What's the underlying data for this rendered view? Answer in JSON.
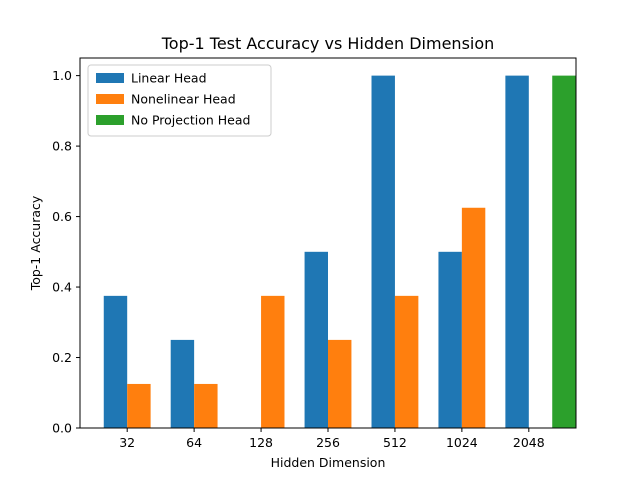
{
  "chart_data": {
    "type": "bar",
    "title": "Top-1 Test Accuracy vs Hidden Dimension",
    "xlabel": "Hidden Dimension",
    "ylabel": "Top-1 Accuracy",
    "categories": [
      "32",
      "64",
      "128",
      "256",
      "512",
      "1024",
      "2048"
    ],
    "ylim": [
      0,
      1.05
    ],
    "yticks": [
      "0.0",
      "0.2",
      "0.4",
      "0.6",
      "0.8",
      "1.0"
    ],
    "grid": false,
    "legend_position": "top-left",
    "series": [
      {
        "name": "Linear Head",
        "color": "#1f77b4",
        "values": [
          0.375,
          0.25,
          null,
          0.5,
          1.0,
          0.5,
          1.0
        ]
      },
      {
        "name": "Nonelinear Head",
        "color": "#ff7f0e",
        "values": [
          0.125,
          0.125,
          0.375,
          0.25,
          0.375,
          0.625,
          null
        ]
      },
      {
        "name": "No Projection Head",
        "color": "#2ca02c",
        "values": [
          null,
          null,
          null,
          null,
          null,
          null,
          1.0
        ]
      }
    ]
  }
}
